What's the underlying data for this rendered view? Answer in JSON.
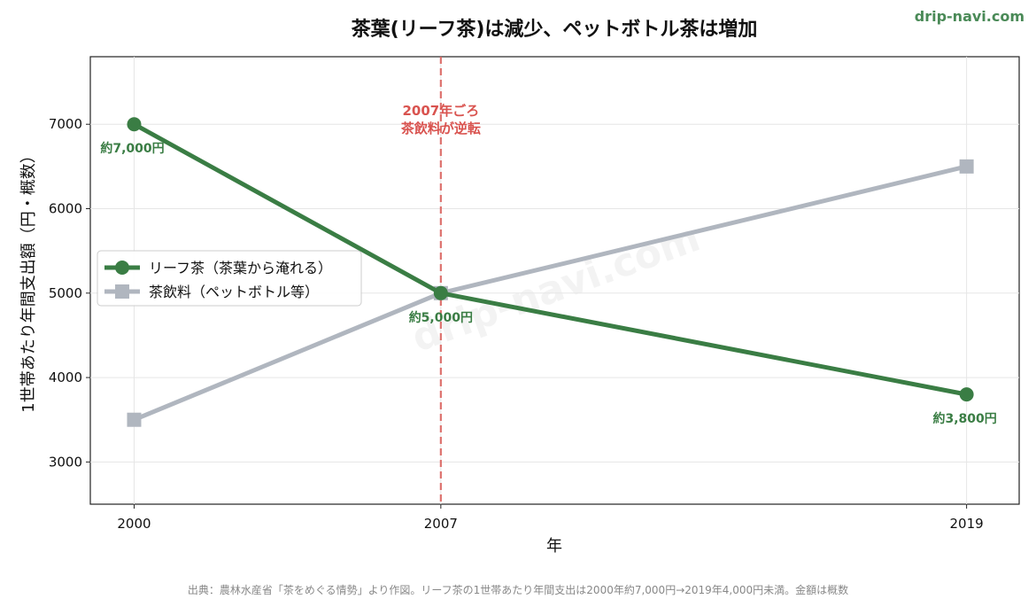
{
  "site": "drip-navi.com",
  "source_note": "出典：農林水産省「茶をめぐる情勢」より作図。リーフ茶の1世帯あたり年間支出は2000年約7,000円→2019年4,000円未満。金額は概数",
  "chart_data": {
    "type": "line",
    "title": "茶葉(リーフ茶)は減少、ペットボトル茶は増加",
    "xlabel": "年",
    "ylabel": "1世帯あたり年間支出額（円・概数）",
    "x": [
      2000,
      2007,
      2019
    ],
    "x_ticks": [
      "2000",
      "2007",
      "2019"
    ],
    "xlim": [
      1999,
      2020.2
    ],
    "ylim": [
      2500,
      7800
    ],
    "y_ticks": [
      "3000",
      "4000",
      "5000",
      "6000",
      "7000"
    ],
    "grid": true,
    "legend_position": "center-left",
    "series": [
      {
        "name": "リーフ茶（茶葉から淹れる）",
        "values": [
          7000,
          5000,
          3800
        ],
        "color": "#3a7d44",
        "marker": "circle"
      },
      {
        "name": "茶飲料（ペットボトル等）",
        "values": [
          3500,
          5000,
          6500
        ],
        "color": "#b0b6bf",
        "marker": "square"
      }
    ],
    "data_labels": [
      {
        "x": 2000,
        "y": 7000,
        "text": "約7,000円"
      },
      {
        "x": 2007,
        "y": 5000,
        "text": "約5,000円"
      },
      {
        "x": 2019,
        "y": 3800,
        "text": "約3,800円"
      }
    ],
    "annotation": {
      "x": 2007,
      "color": "#d9534f",
      "lines": [
        "2007年ごろ",
        "茶飲料が逆転"
      ]
    },
    "watermark": "drip-navi.com"
  }
}
